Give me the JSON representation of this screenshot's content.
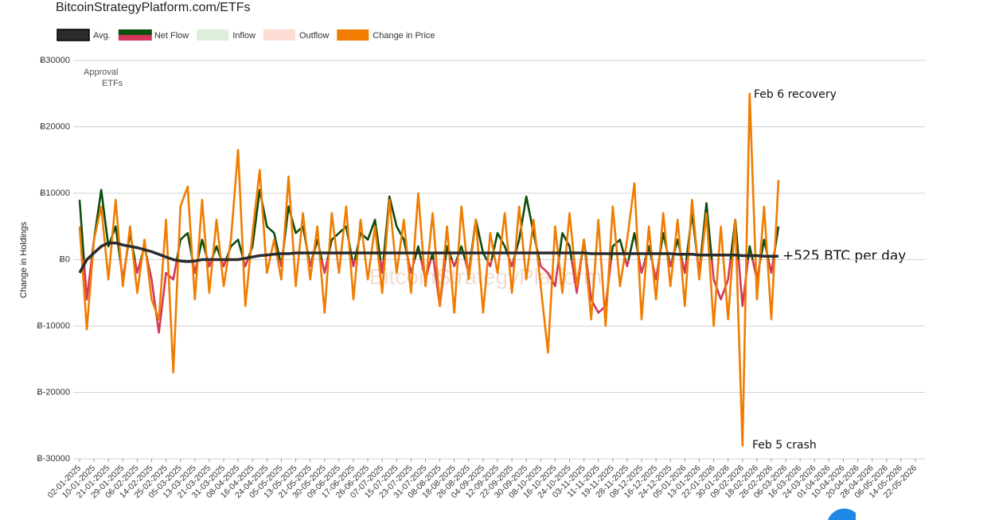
{
  "chart_data": {
    "type": "line",
    "title": "BitcoinStrategyPlatform.com/ETFs",
    "y_label": "Change in Holdings",
    "annotations": [
      "Approval",
      "ETFs",
      "Feb 6 recovery",
      "Feb 5 crash",
      "+525 BTC per day",
      "BitcoinStrategyPlatform"
    ],
    "categories": [
      "02-01-2025",
      null,
      "10-01-2025",
      null,
      "21-01-2025",
      null,
      "29-01-2025",
      null,
      "06-02-2025",
      null,
      "14-02-2025",
      null,
      "25-02-2025",
      null,
      "05-03-2025",
      null,
      "13-03-2025",
      null,
      "21-03-2025",
      null,
      "31-03-2025",
      null,
      "08-04-2025",
      null,
      "16-04-2025",
      null,
      "24-04-2025",
      null,
      "05-05-2025",
      null,
      "13-05-2025",
      null,
      "21-05-2025",
      null,
      "30-05-2025",
      null,
      "09-06-2025",
      null,
      "17-06-2025",
      null,
      "26-06-2025",
      null,
      "07-07-2025",
      null,
      "15-07-2025",
      null,
      "23-07-2025",
      null,
      "31-07-2025",
      null,
      "08-08-2025",
      null,
      "18-08-2025",
      null,
      "26-08-2025",
      null,
      "04-09-2025",
      null,
      "12-09-2025",
      null,
      "22-09-2025",
      null,
      "30-09-2025",
      null,
      "08-10-2025",
      null,
      "16-10-2025",
      null,
      "24-10-2025",
      null,
      "03-11-2025",
      null,
      "11-11-2025",
      null,
      "19-11-2025",
      null,
      "28-11-2025",
      null,
      "08-12-2025",
      null,
      "16-12-2025",
      null,
      "24-12-2025",
      null,
      "05-01-2026",
      null,
      "13-01-2026",
      null,
      "22-01-2026",
      null,
      "30-01-2026",
      null,
      "09-02-2026",
      null,
      "18-02-2026",
      null,
      "26-02-2026",
      null,
      "06-03-2026",
      null,
      "16-03-2026",
      null,
      "24-03-2026",
      null,
      "01-04-2026",
      null,
      "10-04-2026",
      null,
      "20-04-2026",
      null,
      "28-04-2026",
      null,
      "06-05-2026",
      null,
      "14-05-2026",
      null,
      "22-05-2026"
    ],
    "series": [
      {
        "name": "Avg.",
        "color": "#2b2b2b",
        "values": [
          -2000,
          0,
          1000,
          2000,
          2500,
          2500,
          2200,
          2000,
          1800,
          1500,
          1200,
          800,
          400,
          0,
          -200,
          -300,
          -200,
          0,
          0,
          0,
          0,
          0,
          0,
          200,
          400,
          600,
          700,
          800,
          900,
          900,
          1000,
          1000,
          1000,
          1000,
          1000,
          1000,
          1000,
          1000,
          1000,
          1000,
          1000,
          1000,
          1000,
          1000,
          1000,
          1000,
          1000,
          1000,
          1000,
          1000,
          1000,
          1000,
          1000,
          1000,
          1000,
          1000,
          1000,
          1000,
          1000,
          1000,
          1000,
          1000,
          1000,
          1000,
          1000,
          1000,
          1000,
          1000,
          1000,
          1000,
          1000,
          900,
          900,
          900,
          900,
          900,
          900,
          900,
          900,
          900,
          900,
          900,
          900,
          800,
          800,
          800,
          700,
          700,
          700,
          700,
          700,
          700,
          600,
          600,
          600,
          500,
          500,
          500,
          null,
          null,
          null,
          null,
          null,
          null,
          null,
          null,
          null,
          null,
          null,
          null,
          null,
          null,
          null,
          null,
          null,
          null,
          null
        ]
      },
      {
        "name": "Net Flow",
        "color": "#0b4d0b",
        "negative_color": "#d3385a",
        "values": [
          9000,
          -6000,
          3000,
          10500,
          2000,
          5000,
          -3000,
          4000,
          -2000,
          2000,
          -3000,
          -11000,
          -2000,
          -3000,
          3000,
          4000,
          -2000,
          3000,
          -1000,
          2000,
          -1000,
          2000,
          3000,
          -1000,
          2000,
          10500,
          5000,
          4000,
          -1000,
          8000,
          4000,
          5000,
          -1000,
          3000,
          -2000,
          3000,
          4000,
          5000,
          -1000,
          4000,
          3000,
          6000,
          -2000,
          9500,
          5000,
          3000,
          -2000,
          2000,
          -3000,
          1000,
          -7000,
          2000,
          -1000,
          2000,
          -2000,
          6000,
          1000,
          -1000,
          4000,
          2000,
          -1000,
          3000,
          9500,
          4000,
          -1000,
          -2000,
          -4000,
          4000,
          2000,
          -5000,
          3000,
          -6000,
          -8000,
          -7000,
          2000,
          3000,
          -1000,
          4000,
          -2000,
          2000,
          -3000,
          4000,
          -1000,
          3000,
          -2000,
          7000,
          -2000,
          8500,
          -3000,
          -6000,
          -3000,
          6000,
          -7000,
          2000,
          -3000,
          3000,
          -2000,
          5000,
          null,
          null,
          null,
          null,
          null,
          null,
          null,
          null,
          null,
          null,
          null,
          null,
          null,
          null,
          null,
          null,
          null,
          null,
          null
        ]
      },
      {
        "name": "Change in Price",
        "color": "#f07c00",
        "values": [
          5000,
          -10500,
          3000,
          8000,
          -3000,
          9000,
          -4000,
          5000,
          -5000,
          3000,
          -6000,
          -9000,
          6000,
          -17000,
          8000,
          11000,
          -6000,
          9000,
          -5000,
          6000,
          -4000,
          3000,
          16500,
          -7000,
          4000,
          13500,
          -2000,
          3000,
          -3000,
          12500,
          -4000,
          7000,
          -3000,
          5000,
          -8000,
          7000,
          -2000,
          8000,
          -6000,
          6000,
          -3000,
          5000,
          -5000,
          9000,
          -2000,
          6000,
          -5000,
          10000,
          -4000,
          7000,
          -7000,
          5000,
          -8000,
          8000,
          -3000,
          6000,
          -8000,
          4000,
          -2000,
          7000,
          -5000,
          8000,
          -3000,
          6000,
          -4000,
          -14000,
          5000,
          -5000,
          7000,
          -4000,
          3000,
          -9000,
          6000,
          -10000,
          8000,
          -4000,
          3000,
          11500,
          -9000,
          5000,
          -6000,
          7000,
          -4000,
          6000,
          -7000,
          9000,
          -3000,
          7000,
          -10000,
          5000,
          -9000,
          6000,
          -28000,
          25000,
          -6000,
          8000,
          -9000,
          12000,
          null,
          null,
          null,
          null,
          null,
          null,
          null,
          null,
          null,
          null,
          null,
          null,
          null,
          null,
          null,
          null,
          null,
          null,
          null
        ]
      }
    ],
    "legend_only": [
      {
        "name": "Inflow",
        "color": "#dcefd8"
      },
      {
        "name": "Outflow",
        "color": "#fcdcd5"
      }
    ],
    "ylim": [
      -30000,
      30000
    ],
    "yticks": [
      {
        "value": -30000,
        "label": "Ƀ-30000"
      },
      {
        "value": -20000,
        "label": "Ƀ-20000"
      },
      {
        "value": -10000,
        "label": "Ƀ-10000"
      },
      {
        "value": 0,
        "label": "Ƀ0"
      },
      {
        "value": 10000,
        "label": "Ƀ10000"
      },
      {
        "value": 20000,
        "label": "Ƀ20000"
      },
      {
        "value": 30000,
        "label": "Ƀ30000"
      }
    ],
    "grid": true
  }
}
